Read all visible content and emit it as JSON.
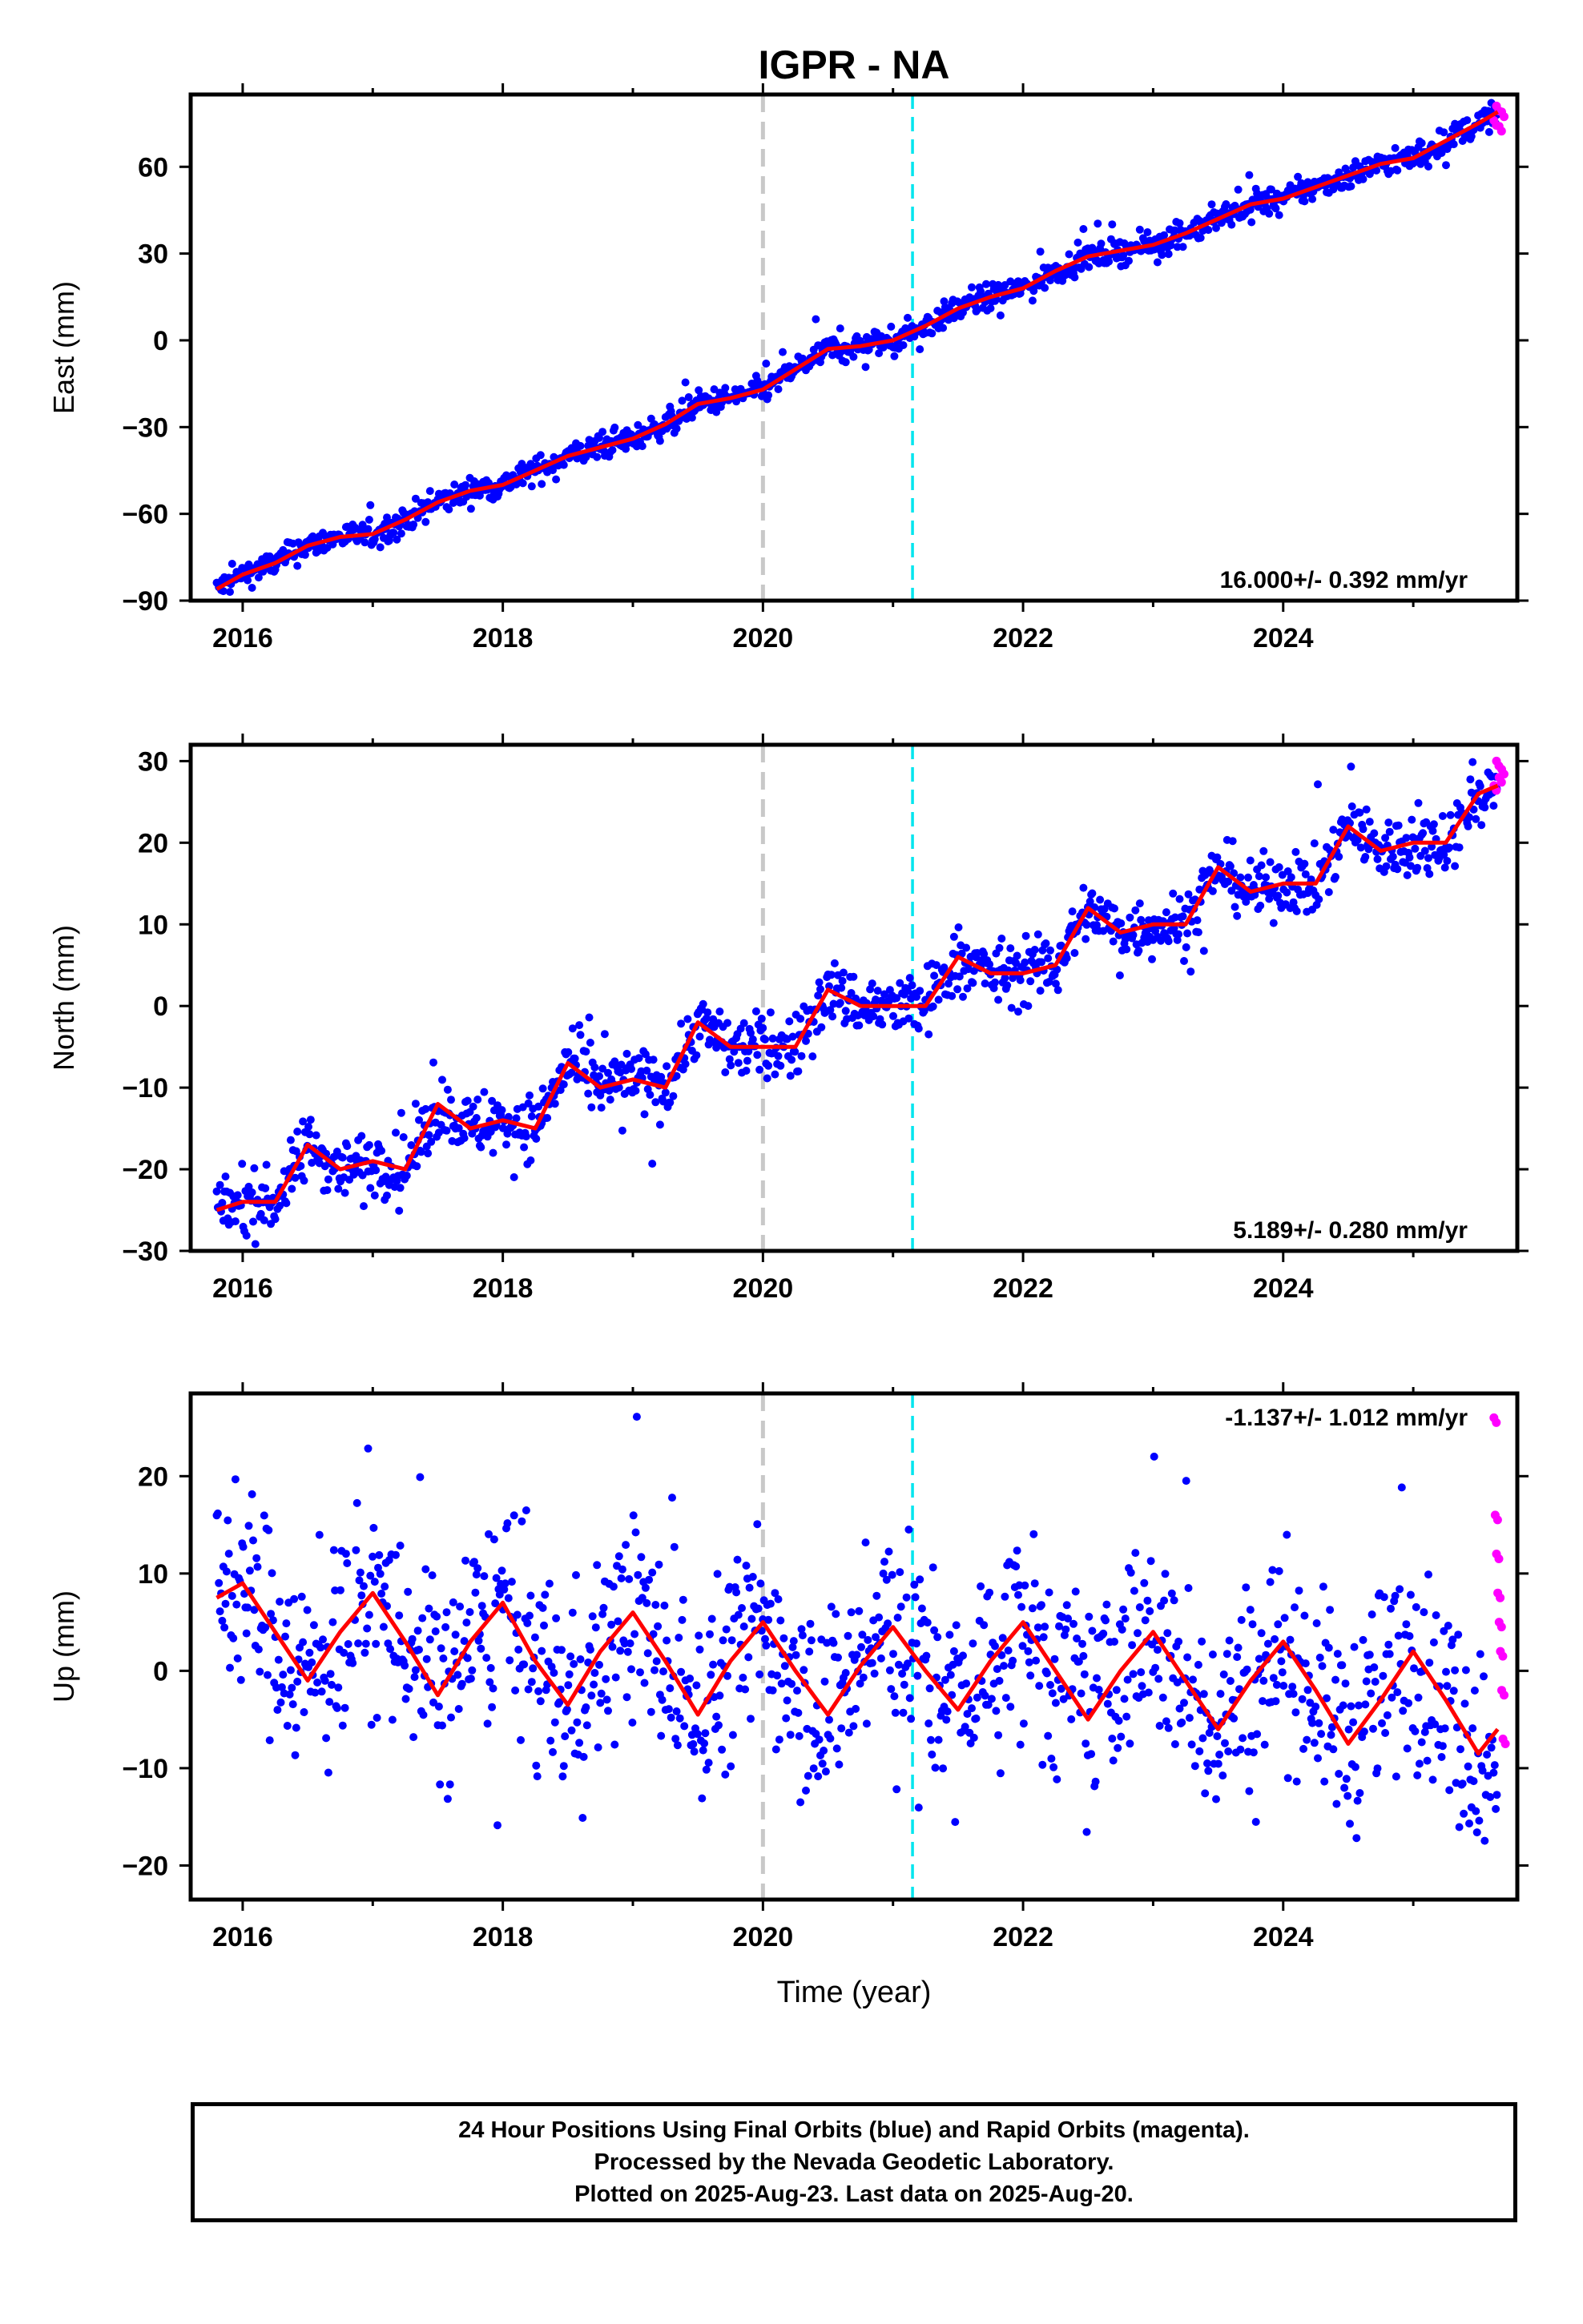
{
  "chart_data": [
    {
      "type": "scatter",
      "title": "IGPR - NA",
      "ylabel": "East (mm)",
      "xlabel": "",
      "xlim": [
        2015.6,
        2025.8
      ],
      "ylim": [
        -90,
        85
      ],
      "yticks": [
        -90,
        -60,
        -30,
        0,
        30,
        60
      ],
      "xticks": [
        2016,
        2018,
        2020,
        2022,
        2024
      ],
      "rate_label": "16.000+/- 0.392 mm/yr",
      "vlines": [
        {
          "x": 2020.0,
          "color": "#c8c8c8"
        },
        {
          "x": 2021.15,
          "color": "#00e5ee"
        }
      ],
      "grid": false,
      "series": [
        {
          "color": "#0000ff",
          "x": [
            2015.8,
            2016.0,
            2016.25,
            2016.5,
            2016.75,
            2017.0,
            2017.25,
            2017.5,
            2017.75,
            2018.0,
            2018.25,
            2018.5,
            2018.75,
            2019.0,
            2019.25,
            2019.5,
            2019.75,
            2020.0,
            2020.25,
            2020.5,
            2020.75,
            2021.0,
            2021.25,
            2021.5,
            2021.75,
            2022.0,
            2022.25,
            2022.5,
            2022.75,
            2023.0,
            2023.25,
            2023.5,
            2023.75,
            2024.0,
            2024.25,
            2024.5,
            2024.75,
            2025.0,
            2025.25,
            2025.5,
            2025.65
          ],
          "y": [
            -86,
            -81,
            -77,
            -71,
            -68,
            -67,
            -62,
            -56,
            -52,
            -50,
            -45,
            -40,
            -37,
            -34,
            -29,
            -22,
            -20,
            -17,
            -10,
            -3,
            -2,
            0,
            5,
            11,
            15,
            18,
            24,
            29,
            31,
            33,
            37,
            42,
            47,
            49,
            53,
            57,
            61,
            63,
            69,
            75,
            79
          ]
        },
        {
          "color": "#ff00ff",
          "x": [
            2025.62,
            2025.64,
            2025.66,
            2025.68
          ],
          "y": [
            76,
            81,
            74,
            79
          ]
        }
      ],
      "model_line": {
        "color": "#ff0000",
        "x": [
          2015.8,
          2016.0,
          2016.25,
          2016.5,
          2016.75,
          2017.0,
          2017.25,
          2017.5,
          2017.75,
          2018.0,
          2018.25,
          2018.5,
          2018.75,
          2019.0,
          2019.25,
          2019.5,
          2019.75,
          2020.0,
          2020.25,
          2020.5,
          2020.75,
          2021.0,
          2021.25,
          2021.5,
          2021.75,
          2022.0,
          2022.25,
          2022.5,
          2022.75,
          2023.0,
          2023.25,
          2023.5,
          2023.75,
          2024.0,
          2024.25,
          2024.5,
          2024.75,
          2025.0,
          2025.25,
          2025.5,
          2025.65
        ],
        "y": [
          -86,
          -81,
          -77,
          -71,
          -68,
          -67,
          -62,
          -56,
          -52,
          -50,
          -45,
          -40,
          -37,
          -34,
          -29,
          -22,
          -20,
          -17,
          -10,
          -3,
          -2,
          0,
          5,
          11,
          15,
          18,
          24,
          29,
          31,
          33,
          37,
          42,
          47,
          49,
          53,
          57,
          61,
          63,
          69,
          75,
          79
        ]
      }
    },
    {
      "type": "scatter",
      "title": "",
      "ylabel": "North (mm)",
      "xlabel": "",
      "xlim": [
        2015.6,
        2025.8
      ],
      "ylim": [
        -30,
        32
      ],
      "yticks": [
        -30,
        -20,
        -10,
        0,
        10,
        20,
        30
      ],
      "xticks": [
        2016,
        2018,
        2020,
        2022,
        2024
      ],
      "rate_label": "5.189+/- 0.280 mm/yr",
      "vlines": [
        {
          "x": 2020.0,
          "color": "#c8c8c8"
        },
        {
          "x": 2021.15,
          "color": "#00e5ee"
        }
      ],
      "grid": false,
      "series": [
        {
          "color": "#0000ff",
          "x": [
            2015.8,
            2016.0,
            2016.25,
            2016.5,
            2016.75,
            2017.0,
            2017.25,
            2017.5,
            2017.75,
            2018.0,
            2018.25,
            2018.5,
            2018.75,
            2019.0,
            2019.25,
            2019.5,
            2019.75,
            2020.0,
            2020.25,
            2020.5,
            2020.75,
            2021.0,
            2021.25,
            2021.5,
            2021.75,
            2022.0,
            2022.25,
            2022.5,
            2022.75,
            2023.0,
            2023.25,
            2023.5,
            2023.75,
            2024.0,
            2024.25,
            2024.5,
            2024.75,
            2025.0,
            2025.25,
            2025.5,
            2025.65
          ],
          "y": [
            -25,
            -24,
            -24,
            -17,
            -20,
            -19,
            -20,
            -12,
            -15,
            -14,
            -15,
            -7,
            -10,
            -9,
            -10,
            -2,
            -5,
            -5,
            -5,
            2,
            0,
            0,
            0,
            6,
            4,
            4,
            5,
            12,
            9,
            10,
            10,
            17,
            14,
            15,
            15,
            22,
            19,
            20,
            20,
            26,
            27
          ]
        },
        {
          "color": "#ff00ff",
          "x": [
            2025.62,
            2025.64,
            2025.66,
            2025.68
          ],
          "y": [
            27,
            30,
            28,
            29
          ]
        }
      ],
      "model_line": {
        "color": "#ff0000",
        "x": [
          2015.8,
          2016.0,
          2016.25,
          2016.5,
          2016.75,
          2017.0,
          2017.25,
          2017.5,
          2017.75,
          2018.0,
          2018.25,
          2018.5,
          2018.75,
          2019.0,
          2019.25,
          2019.5,
          2019.75,
          2020.0,
          2020.25,
          2020.5,
          2020.75,
          2021.0,
          2021.25,
          2021.5,
          2021.75,
          2022.0,
          2022.25,
          2022.5,
          2022.75,
          2023.0,
          2023.25,
          2023.5,
          2023.75,
          2024.0,
          2024.25,
          2024.5,
          2024.75,
          2025.0,
          2025.25,
          2025.5,
          2025.65
        ],
        "y": [
          -25,
          -24,
          -24,
          -17,
          -20,
          -19,
          -20,
          -12,
          -15,
          -14,
          -15,
          -7,
          -10,
          -9,
          -10,
          -2,
          -5,
          -5,
          -5,
          2,
          0,
          0,
          0,
          6,
          4,
          4,
          5,
          12,
          9,
          10,
          10,
          17,
          14,
          15,
          15,
          22,
          19,
          20,
          20,
          26,
          27
        ]
      }
    },
    {
      "type": "scatter",
      "title": "",
      "ylabel": "Up (mm)",
      "xlabel": "Time (year)",
      "xlim": [
        2015.6,
        2025.8
      ],
      "ylim": [
        -23.5,
        28.5
      ],
      "yticks": [
        -20,
        -10,
        0,
        10,
        20
      ],
      "xticks": [
        2016,
        2018,
        2020,
        2022,
        2024
      ],
      "rate_label": "-1.137+/- 1.012 mm/yr",
      "vlines": [
        {
          "x": 2020.0,
          "color": "#c8c8c8"
        },
        {
          "x": 2021.15,
          "color": "#00e5ee"
        }
      ],
      "grid": false,
      "series": [
        {
          "color": "#0000ff",
          "x": [
            2015.8,
            2016.0,
            2016.25,
            2016.5,
            2016.75,
            2017.0,
            2017.25,
            2017.5,
            2017.75,
            2018.0,
            2018.25,
            2018.5,
            2018.75,
            2019.0,
            2019.25,
            2019.5,
            2019.75,
            2020.0,
            2020.25,
            2020.5,
            2020.75,
            2021.0,
            2021.25,
            2021.5,
            2021.75,
            2022.0,
            2022.25,
            2022.5,
            2022.75,
            2023.0,
            2023.25,
            2023.5,
            2023.75,
            2024.0,
            2024.25,
            2024.5,
            2024.75,
            2025.0,
            2025.25,
            2025.5,
            2025.65
          ],
          "y": [
            8,
            9,
            4,
            -1,
            4,
            8,
            3,
            -2,
            3,
            7,
            1,
            -3,
            2,
            6,
            1,
            -4,
            1,
            5,
            0,
            -4,
            1,
            5,
            0,
            -4,
            1,
            5,
            0,
            -4,
            1,
            4,
            -1,
            -5,
            -1,
            3,
            -2,
            -7,
            -2,
            2,
            -3,
            -8,
            -6
          ]
        },
        {
          "color": "#ff00ff",
          "x": [
            2025.62,
            2025.63,
            2025.64,
            2025.65,
            2025.66,
            2025.67,
            2025.68,
            2025.69
          ],
          "y": [
            26,
            16,
            12,
            8,
            5,
            2,
            -2,
            -7
          ]
        }
      ],
      "model_line": {
        "color": "#ff0000",
        "x": [
          2015.8,
          2016.0,
          2016.25,
          2016.5,
          2016.75,
          2017.0,
          2017.25,
          2017.5,
          2017.75,
          2018.0,
          2018.25,
          2018.5,
          2018.75,
          2019.0,
          2019.25,
          2019.5,
          2019.75,
          2020.0,
          2020.25,
          2020.5,
          2020.75,
          2021.0,
          2021.25,
          2021.5,
          2021.75,
          2022.0,
          2022.25,
          2022.5,
          2022.75,
          2023.0,
          2023.25,
          2023.5,
          2023.75,
          2024.0,
          2024.25,
          2024.5,
          2024.75,
          2025.0,
          2025.25,
          2025.5,
          2025.65
        ],
        "y": [
          7.5,
          9,
          4,
          -1,
          4,
          8,
          3,
          -2.5,
          3,
          7,
          1,
          -3.5,
          2,
          6,
          1,
          -4.5,
          1,
          5,
          0,
          -4.5,
          0.5,
          4.5,
          0,
          -4,
          1,
          5,
          0,
          -5,
          0,
          4,
          -1,
          -6,
          -1,
          3,
          -2,
          -7.5,
          -3,
          2,
          -3,
          -8.5,
          -6
        ]
      }
    }
  ],
  "caption": {
    "line1": "24 Hour Positions Using Final Orbits (blue) and Rapid Orbits (magenta).",
    "line2": "Processed by the Nevada Geodetic Laboratory.",
    "line3": "Plotted on 2025-Aug-23. Last data on 2025-Aug-20."
  }
}
